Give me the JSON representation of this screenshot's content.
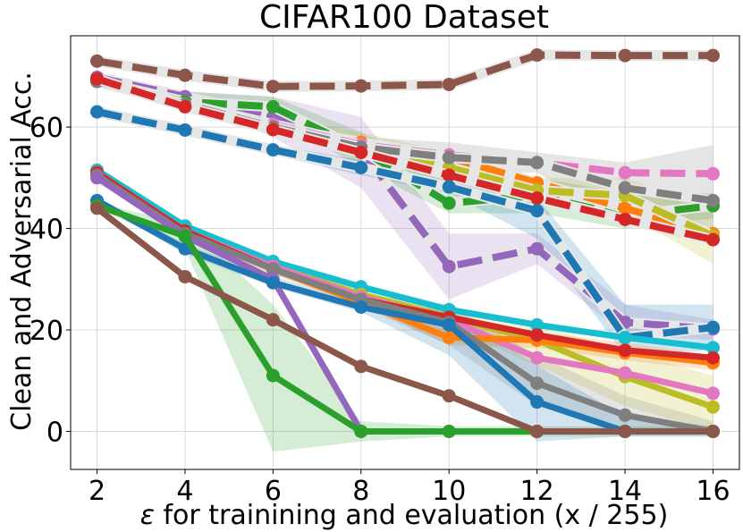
{
  "chart_data": {
    "type": "line",
    "title": "CIFAR100 Dataset",
    "xlabel_symbol": "ε",
    "xlabel_rest": " for trainining and evaluation (x / 255)",
    "ylabel": "Clean and Adversarial Acc.",
    "x": [
      2,
      4,
      6,
      8,
      10,
      12,
      14,
      16
    ],
    "xlim": [
      1.4,
      16.6
    ],
    "ylim": [
      -7.5,
      78
    ],
    "xticks": [
      2,
      4,
      6,
      8,
      10,
      12,
      14,
      16
    ],
    "yticks": [
      0,
      20,
      40,
      60
    ],
    "grid": true,
    "series": [
      {
        "name": "brown-dashed",
        "color": "#8c564b",
        "dashed": true,
        "values": [
          73,
          70.2,
          68,
          68.1,
          68.4,
          74.2,
          74.1,
          74.1
        ],
        "band": null
      },
      {
        "name": "purple-dashed",
        "color": "#9467bd",
        "dashed": true,
        "values": [
          69.8,
          66,
          62,
          55.5,
          32.5,
          36,
          21.5,
          20.2
        ],
        "band": [
          [
            69.3,
            70.3
          ],
          [
            65,
            67
          ],
          [
            58,
            66
          ],
          [
            48,
            62
          ],
          [
            26,
            39
          ],
          [
            33,
            39
          ],
          [
            19,
            25
          ],
          [
            18,
            22
          ]
        ]
      },
      {
        "name": "green-dashed",
        "color": "#2ca02c",
        "dashed": true,
        "values": [
          69,
          65,
          64,
          55.5,
          45,
          46.5,
          42.5,
          44.5
        ],
        "band": [
          [
            68.5,
            69.5
          ],
          [
            63,
            67
          ],
          [
            62,
            66
          ],
          [
            52,
            59
          ],
          [
            43,
            49
          ],
          [
            43,
            50
          ],
          [
            40,
            47
          ],
          [
            42,
            47
          ]
        ]
      },
      {
        "name": "orange-dashed",
        "color": "#ff7f0e",
        "dashed": true,
        "values": [
          69,
          64.5,
          60,
          57,
          54,
          49,
          44,
          39
        ],
        "band": null
      },
      {
        "name": "olive-dashed",
        "color": "#bcbd22",
        "dashed": true,
        "values": [
          69,
          64.5,
          60.5,
          56.5,
          52,
          47.5,
          46.5,
          38.5
        ],
        "band": [
          [
            68.5,
            69.5
          ],
          [
            63.5,
            65.5
          ],
          [
            59,
            62
          ],
          [
            54,
            59
          ],
          [
            49,
            55
          ],
          [
            45,
            50
          ],
          [
            43,
            50
          ],
          [
            33,
            44
          ]
        ]
      },
      {
        "name": "pink-dashed",
        "color": "#e377c2",
        "dashed": true,
        "values": [
          69,
          64.5,
          60.5,
          56.5,
          54.5,
          53,
          51,
          50.8
        ],
        "band": null
      },
      {
        "name": "grey-dashed",
        "color": "#7f7f7f",
        "dashed": true,
        "values": [
          69,
          64.5,
          60,
          56,
          54,
          53,
          48,
          45.5
        ],
        "band": [
          [
            68.5,
            69.5
          ],
          [
            63.5,
            65.5
          ],
          [
            59,
            61
          ],
          [
            54,
            58
          ],
          [
            51,
            57
          ],
          [
            51,
            55
          ],
          [
            41,
            53
          ],
          [
            37,
            56.5
          ]
        ]
      },
      {
        "name": "red-dashed",
        "color": "#d62728",
        "dashed": true,
        "values": [
          69.5,
          64,
          59.5,
          55,
          50.5,
          46,
          41.8,
          37.8
        ],
        "band": null
      },
      {
        "name": "blue-dashed",
        "color": "#1f77b4",
        "dashed": true,
        "values": [
          63,
          59.4,
          55.5,
          52,
          48.2,
          43.5,
          18.5,
          20.5
        ],
        "band": [
          [
            62.5,
            63.5
          ],
          [
            58.5,
            60.3
          ],
          [
            54.5,
            56.5
          ],
          [
            50.5,
            53.5
          ],
          [
            47,
            50
          ],
          [
            38,
            46
          ],
          [
            15,
            25
          ],
          [
            16,
            25
          ]
        ]
      },
      {
        "name": "cyan-solid",
        "color": "#17becf",
        "dashed": false,
        "values": [
          51.5,
          40.5,
          33.5,
          28.5,
          24,
          21,
          18.5,
          16.5
        ],
        "band": null
      },
      {
        "name": "olive-solid",
        "color": "#bcbd22",
        "dashed": false,
        "values": [
          51,
          39.5,
          32.5,
          27,
          22.5,
          18,
          10.8,
          4.8
        ],
        "band": [
          [
            50.5,
            51.5
          ],
          [
            38.5,
            40.5
          ],
          [
            31.5,
            33.5
          ],
          [
            25.5,
            28.5
          ],
          [
            20.5,
            24.5
          ],
          [
            13,
            21
          ],
          [
            5,
            16
          ],
          [
            0,
            11
          ]
        ]
      },
      {
        "name": "pink-solid",
        "color": "#e377c2",
        "dashed": false,
        "values": [
          51,
          39.5,
          32.5,
          26.5,
          22,
          14.5,
          11.5,
          7.5
        ],
        "band": null
      },
      {
        "name": "orange-solid",
        "color": "#ff7f0e",
        "dashed": false,
        "values": [
          51,
          39,
          32,
          25.5,
          18.5,
          18,
          15.5,
          13.5
        ],
        "band": [
          [
            50.5,
            51.5
          ],
          [
            38,
            40
          ],
          [
            31,
            33
          ],
          [
            24.5,
            27
          ],
          [
            17,
            20.5
          ],
          [
            16.5,
            19.5
          ],
          [
            14,
            17.5
          ],
          [
            12,
            15
          ]
        ]
      },
      {
        "name": "red-solid",
        "color": "#d62728",
        "dashed": false,
        "values": [
          51,
          39.5,
          32,
          26,
          22.5,
          19,
          16,
          14.5
        ],
        "band": null
      },
      {
        "name": "grey-solid",
        "color": "#7f7f7f",
        "dashed": false,
        "values": [
          50.5,
          39,
          32,
          26,
          21.5,
          9.5,
          3.2,
          0
        ],
        "band": [
          [
            50,
            51
          ],
          [
            38,
            40
          ],
          [
            31,
            33
          ],
          [
            25,
            27
          ],
          [
            17,
            25
          ],
          [
            5,
            15
          ],
          [
            0,
            7
          ],
          [
            0,
            2
          ]
        ]
      },
      {
        "name": "purple-solid",
        "color": "#9467bd",
        "dashed": false,
        "values": [
          50,
          38.5,
          30,
          0,
          0,
          0,
          0,
          0
        ],
        "band": null
      },
      {
        "name": "blue-solid",
        "color": "#1f77b4",
        "dashed": false,
        "values": [
          45.5,
          36,
          29.3,
          24.5,
          21,
          5.8,
          0,
          0
        ],
        "band": [
          [
            45,
            46
          ],
          [
            35,
            37
          ],
          [
            28.5,
            30.5
          ],
          [
            23.5,
            25.5
          ],
          [
            15,
            24
          ],
          [
            -2,
            13
          ],
          [
            -1,
            3
          ],
          [
            -1,
            1
          ]
        ]
      },
      {
        "name": "green-solid",
        "color": "#2ca02c",
        "dashed": false,
        "values": [
          44.5,
          38.5,
          11,
          0,
          0,
          0,
          0,
          0
        ],
        "band": [
          [
            44,
            45
          ],
          [
            36,
            41
          ],
          [
            -4,
            25
          ],
          [
            -2,
            2
          ],
          [
            -1,
            1
          ],
          [
            -1,
            1
          ],
          [
            -1,
            1
          ],
          [
            -1,
            1
          ]
        ]
      },
      {
        "name": "brown-solid",
        "color": "#8c564b",
        "dashed": false,
        "values": [
          44,
          30.5,
          22,
          12.8,
          7,
          0,
          0,
          0
        ],
        "band": null
      }
    ]
  }
}
